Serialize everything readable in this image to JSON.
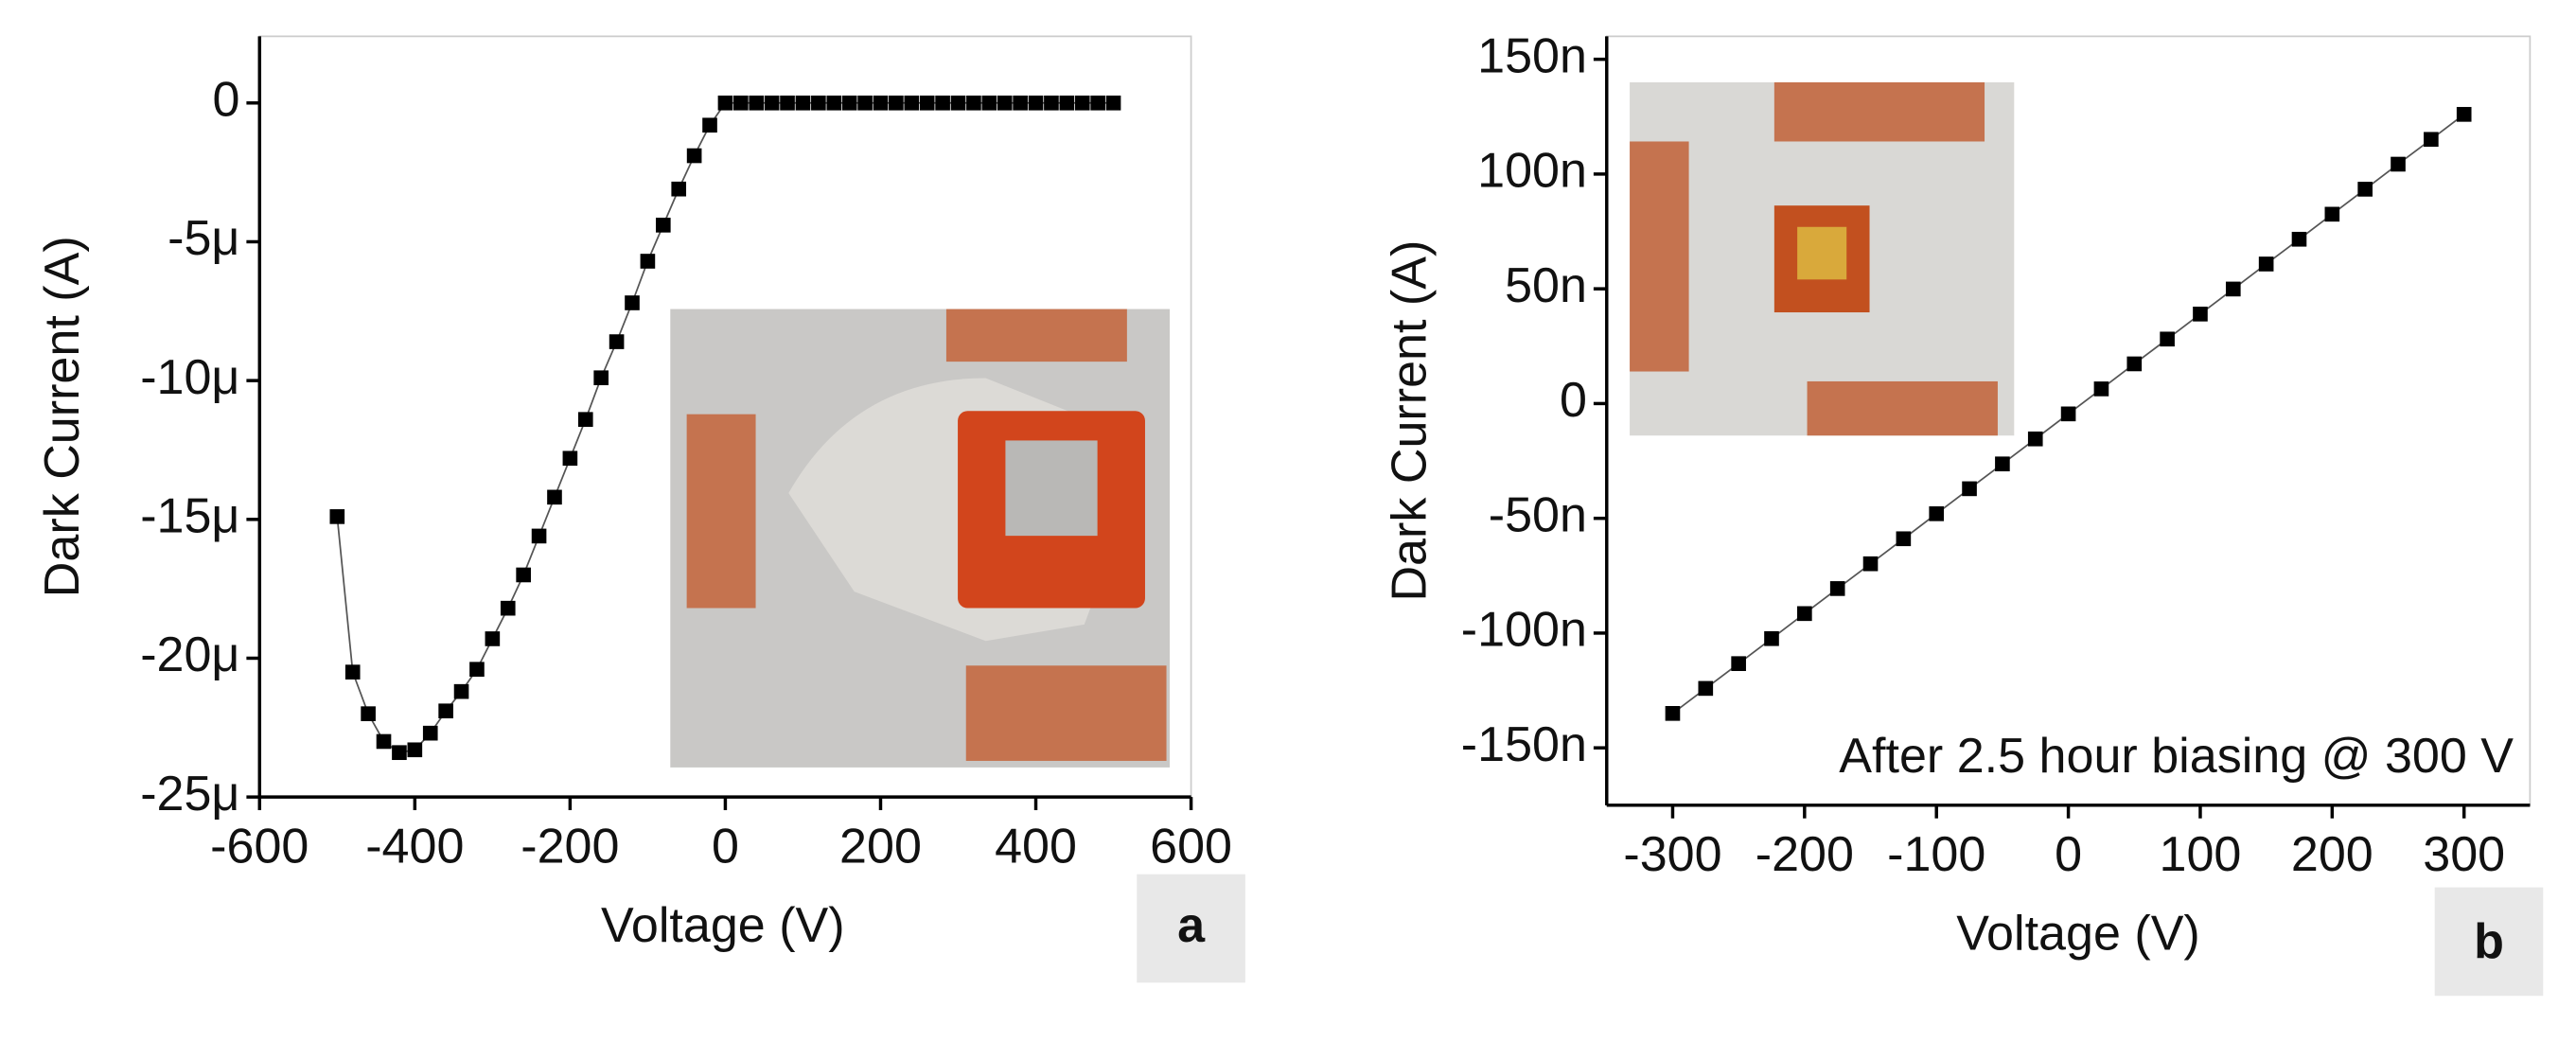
{
  "chart_data": [
    {
      "type": "line",
      "panel": "a",
      "x_label": "Voltage (V)",
      "y_label": "Dark Current (A)",
      "color": "#000000",
      "x": [
        -500,
        -480,
        -460,
        -440,
        -420,
        -400,
        -380,
        -360,
        -340,
        -320,
        -300,
        -280,
        -260,
        -240,
        -220,
        -200,
        -180,
        -160,
        -140,
        -120,
        -100,
        -80,
        -60,
        -40,
        -20,
        0,
        20,
        40,
        60,
        80,
        100,
        120,
        140,
        160,
        180,
        200,
        220,
        240,
        260,
        280,
        300,
        320,
        340,
        360,
        380,
        400,
        420,
        440,
        460,
        480,
        500
      ],
      "series": [
        {
          "values": [
            -1.49e-05,
            -2.05e-05,
            -2.2e-05,
            -2.3e-05,
            -2.34e-05,
            -2.33e-05,
            -2.27e-05,
            -2.19e-05,
            -2.12e-05,
            -2.04e-05,
            -1.93e-05,
            -1.82e-05,
            -1.7e-05,
            -1.56e-05,
            -1.42e-05,
            -1.28e-05,
            -1.14e-05,
            -9.9e-06,
            -8.6e-06,
            -7.2e-06,
            -5.7e-06,
            -4.4e-06,
            -3.1e-06,
            -1.9e-06,
            -8e-07,
            0,
            0,
            0,
            0,
            0,
            0,
            0,
            0,
            0,
            0,
            0,
            0,
            0,
            0,
            0,
            0,
            0,
            0,
            0,
            0,
            0,
            0,
            0,
            0,
            0,
            0
          ]
        }
      ],
      "xlim": [
        -600,
        600
      ],
      "xticks": [
        -600,
        -400,
        -200,
        0,
        200,
        400,
        600
      ],
      "ylim": [
        -2.5e-05,
        2.4e-06
      ],
      "yticks": [
        {
          "value": -2.5e-05,
          "label": "-25μ"
        },
        {
          "value": -2e-05,
          "label": "-20μ"
        },
        {
          "value": -1.5e-05,
          "label": "-15μ"
        },
        {
          "value": -1e-05,
          "label": "-10μ"
        },
        {
          "value": -5e-06,
          "label": "-5μ"
        },
        0
      ]
    },
    {
      "type": "line",
      "panel": "b",
      "x_label": "Voltage (V)",
      "y_label": "Dark Current (A)",
      "color": "#000000",
      "annotation": "After 2.5 hour biasing @ 300 V",
      "x": [
        -300,
        -275,
        -250,
        -225,
        -200,
        -175,
        -150,
        -125,
        -100,
        -75,
        -50,
        -25,
        0,
        25,
        50,
        75,
        100,
        125,
        150,
        175,
        200,
        225,
        250,
        275,
        300
      ],
      "series": [
        {
          "values": [
            -1.35e-07,
            -1.241e-07,
            -1.133e-07,
            -1.024e-07,
            -9.15e-08,
            -8.06e-08,
            -6.98e-08,
            -5.89e-08,
            -4.8e-08,
            -3.71e-08,
            -2.63e-08,
            -1.54e-08,
            -4.5e-09,
            6.4e-09,
            1.73e-08,
            2.81e-08,
            3.9e-08,
            4.99e-08,
            6.08e-08,
            7.16e-08,
            8.25e-08,
            9.34e-08,
            1.043e-07,
            1.151e-07,
            1.26e-07
          ]
        }
      ],
      "xlim": [
        -350,
        350
      ],
      "xticks": [
        -300,
        -200,
        -100,
        0,
        100,
        200,
        300
      ],
      "ylim": [
        -1.75e-07,
        1.6e-07
      ],
      "yticks": [
        {
          "value": -1.5e-07,
          "label": "-150n"
        },
        {
          "value": -1e-07,
          "label": "-100n"
        },
        {
          "value": -5e-08,
          "label": "-50n"
        },
        0,
        {
          "value": 5e-08,
          "label": "50n"
        },
        {
          "value": 1e-07,
          "label": "100n"
        },
        {
          "value": 1.5e-07,
          "label": "150n"
        }
      ]
    }
  ]
}
